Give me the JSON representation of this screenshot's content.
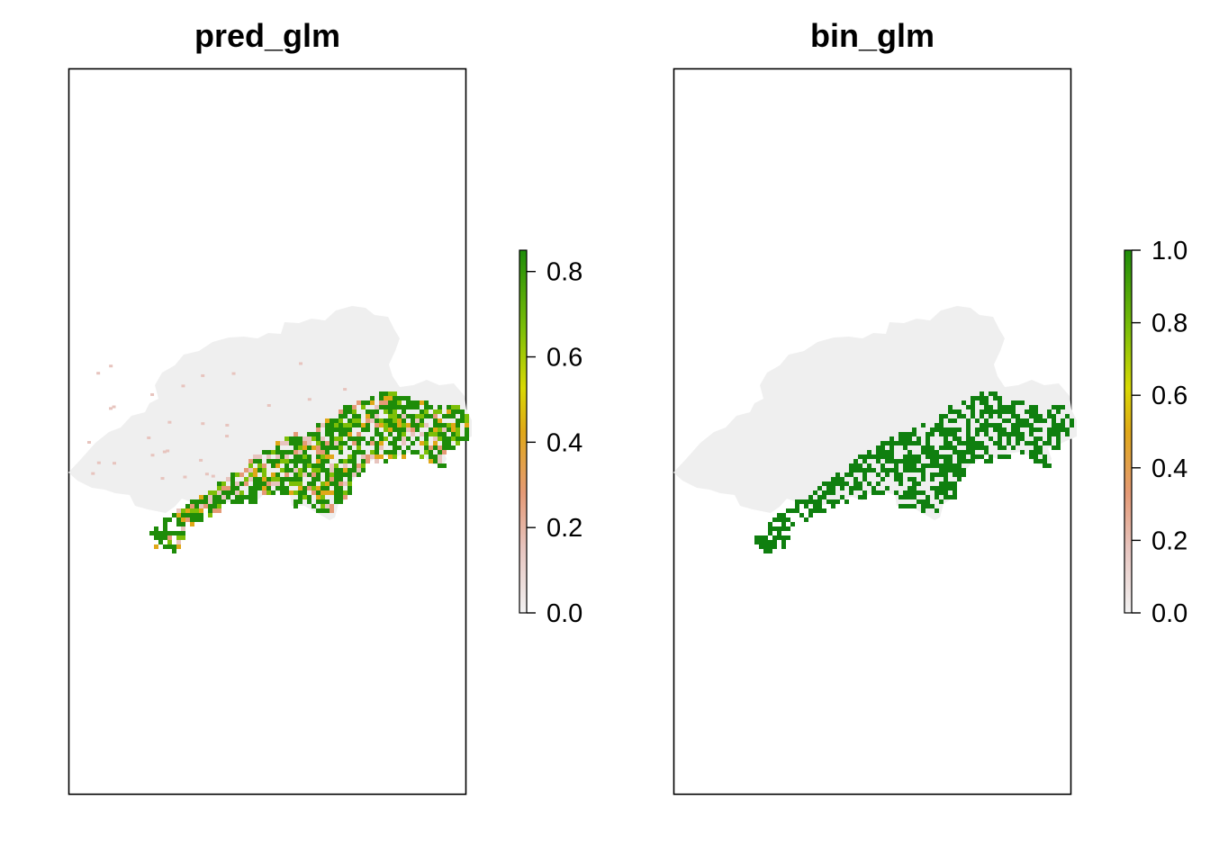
{
  "colors": {
    "background_land": "#efefef",
    "low": "#f2f2f2",
    "pale": "#e7c4be",
    "salmon": "#e59a76",
    "orange": "#e0a818",
    "yellow": "#d9d904",
    "lime": "#7dbf08",
    "green": "#1e8c09",
    "dark_green": "#0f7f0f"
  },
  "panels": [
    {
      "id": "pred",
      "title": "pred_glm",
      "legend": {
        "min": 0,
        "max": 0.85,
        "ticks": [
          0.0,
          0.2,
          0.4,
          0.6,
          0.8
        ],
        "tick_labels": [
          "0.0",
          "0.2",
          "0.4",
          "0.6",
          "0.8"
        ]
      },
      "variant": "continuous"
    },
    {
      "id": "bin",
      "title": "bin_glm",
      "legend": {
        "min": 0,
        "max": 1.0,
        "ticks": [
          0.0,
          0.2,
          0.4,
          0.6,
          0.8,
          1.0
        ],
        "tick_labels": [
          "0.0",
          "0.2",
          "0.4",
          "0.6",
          "0.8",
          "1.0"
        ]
      },
      "variant": "binary"
    }
  ]
}
